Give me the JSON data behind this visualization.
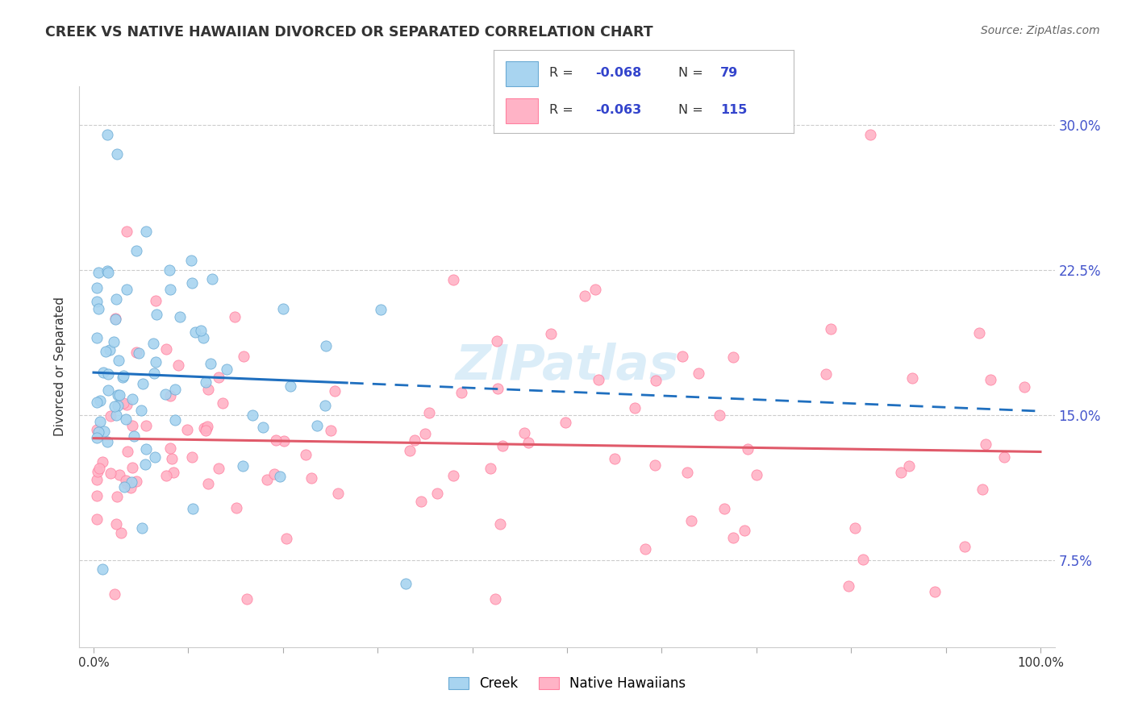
{
  "title": "CREEK VS NATIVE HAWAIIAN DIVORCED OR SEPARATED CORRELATION CHART",
  "source": "Source: ZipAtlas.com",
  "ylabel": "Divorced or Separated",
  "creek_line_color": "#1f6fbf",
  "native_line_color": "#e05a6a",
  "creek_scatter_fill": "#a8d4f0",
  "creek_scatter_edge": "#6aaad4",
  "native_scatter_fill": "#ffb3c6",
  "native_scatter_edge": "#ff80a0",
  "creek_R": -0.068,
  "creek_N": 79,
  "native_R": -0.063,
  "native_N": 115,
  "legend_text_color": "#333333",
  "legend_value_color": "#3344cc",
  "watermark": "ZIPatlas",
  "background_color": "#ffffff",
  "grid_color": "#cccccc",
  "ytick_color": "#4455cc",
  "xtick_color": "#333333",
  "title_color": "#333333",
  "source_color": "#666666",
  "ylabel_color": "#333333"
}
